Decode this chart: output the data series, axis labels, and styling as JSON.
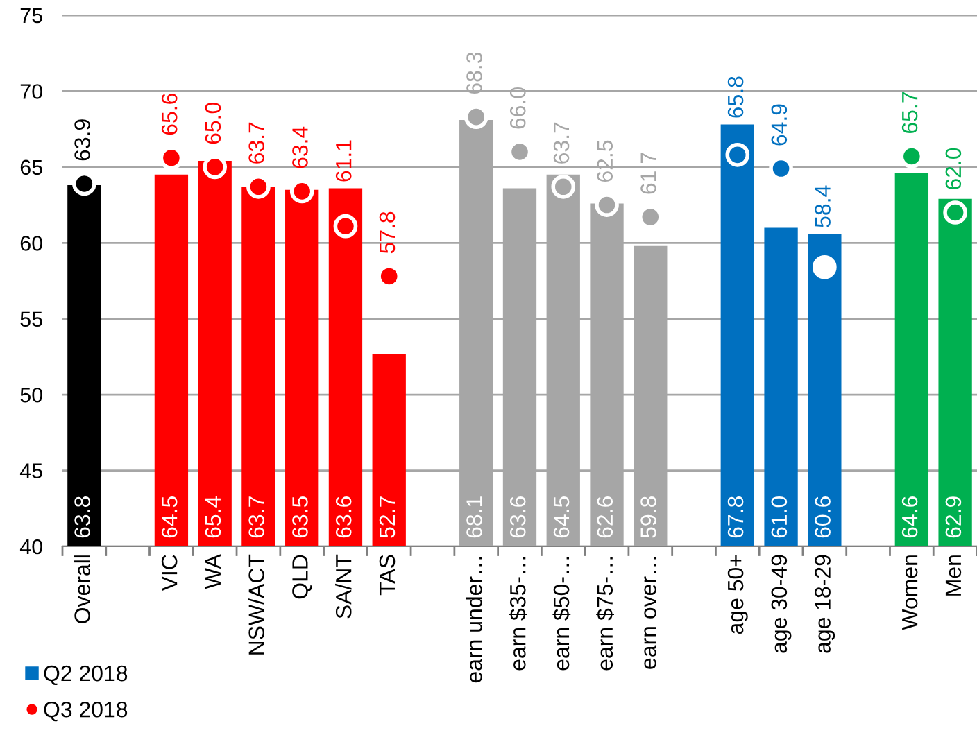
{
  "chart_data": {
    "type": "bar",
    "categories": [
      "Overall",
      null,
      "VIC",
      "WA",
      "NSW/ACT",
      "QLD",
      "SA/NT",
      "TAS",
      null,
      "earn under…",
      "earn $35-…",
      "earn $50-…",
      "earn $75-…",
      "earn over…",
      null,
      "age 50+",
      "age 30-49",
      "age 18-29",
      null,
      "Women",
      "Men"
    ],
    "ylim": [
      40,
      75
    ],
    "yticks": [
      40,
      45,
      50,
      55,
      60,
      65,
      70,
      75
    ],
    "grid": "y",
    "legend": "bottom left",
    "series": [
      {
        "name": "Q2 2018",
        "color": "#0070c0",
        "colors": [
          "#000000",
          null,
          "#ff0000",
          "#ff0000",
          "#ff0000",
          "#ff0000",
          "#ff0000",
          "#ff0000",
          null,
          "#a6a6a6",
          "#a6a6a6",
          "#a6a6a6",
          "#a6a6a6",
          "#a6a6a6",
          null,
          "#0070c0",
          "#0070c0",
          "#0070c0",
          null,
          "#00b050",
          "#00b050"
        ],
        "values": [
          63.8,
          null,
          64.5,
          65.4,
          63.7,
          63.5,
          63.6,
          52.7,
          null,
          68.1,
          63.6,
          64.5,
          62.6,
          59.8,
          null,
          67.8,
          61.0,
          60.6,
          null,
          64.6,
          62.9
        ],
        "value_labels": [
          "63.8",
          null,
          "64.5",
          "65.4",
          "63.7",
          "63.5",
          "63.6",
          "52.7",
          null,
          "68.1",
          "63.6",
          "64.5",
          "62.6",
          "59.8",
          null,
          "67.8",
          "61.0",
          "60.6",
          null,
          "64.6",
          "62.9"
        ]
      },
      {
        "name": "Q3 2018",
        "type": "scatter",
        "marker": "circle",
        "color": "#ff0000",
        "colors": [
          "#000000",
          null,
          "#ff0000",
          "#ff0000",
          "#ff0000",
          "#ff0000",
          "#ff0000",
          "#ff0000",
          null,
          "#a6a6a6",
          "#a6a6a6",
          "#a6a6a6",
          "#a6a6a6",
          "#a6a6a6",
          null,
          "#0070c0",
          "#0070c0",
          "#ffffff",
          null,
          "#00b050",
          "#00b050"
        ],
        "values": [
          63.9,
          null,
          65.6,
          65.0,
          63.7,
          63.4,
          61.1,
          57.8,
          null,
          68.3,
          66.0,
          63.7,
          62.5,
          61.7,
          null,
          65.8,
          64.9,
          58.4,
          null,
          65.7,
          62.0
        ],
        "value_labels": [
          "63.9",
          null,
          "65.6",
          "65.0",
          "63.7",
          "63.4",
          "61.1",
          "57.8",
          null,
          "68.3",
          "66.0",
          "63.7",
          "62.5",
          "61.7",
          null,
          "65.8",
          "64.9",
          "58.4",
          null,
          "65.7",
          "62.0"
        ]
      }
    ]
  }
}
